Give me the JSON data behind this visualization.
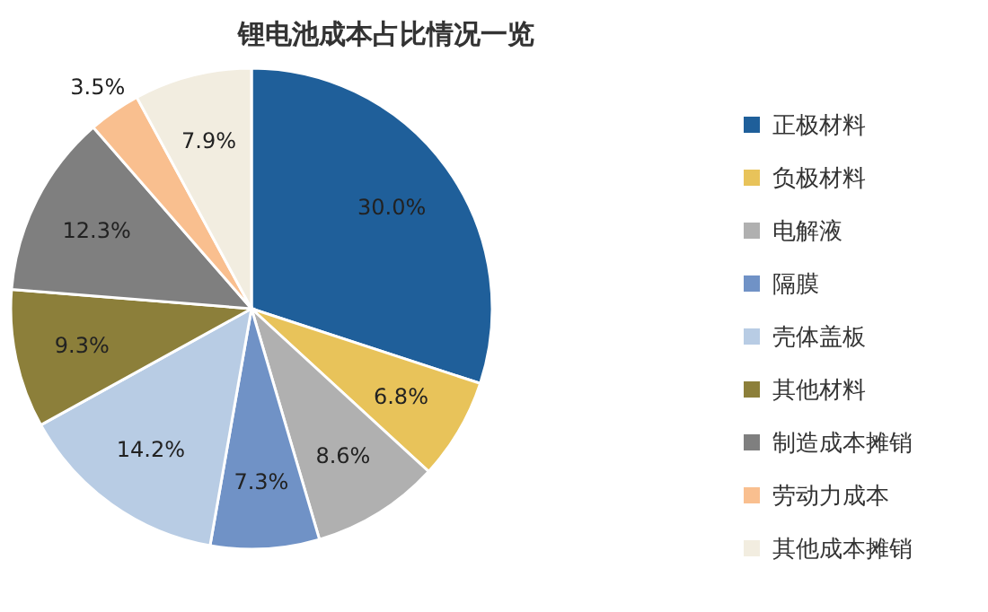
{
  "chart_data": {
    "type": "pie",
    "title": "锂电池成本占比情况一览",
    "categories": [
      "正极材料",
      "负极材料",
      "电解液",
      "隔膜",
      "壳体盖板",
      "其他材料",
      "制造成本摊销",
      "劳动力成本",
      "其他成本摊销"
    ],
    "values": [
      30.0,
      6.8,
      8.6,
      7.3,
      14.2,
      9.3,
      12.3,
      3.5,
      7.9
    ],
    "colors": [
      "#1f5f9a",
      "#e8c35a",
      "#b0b0b0",
      "#7092c6",
      "#b8cce4",
      "#8c7f3a",
      "#7f7f7f",
      "#f9bf8f",
      "#f2ede0"
    ],
    "value_labels": [
      "30.0%",
      "6.8%",
      "8.6%",
      "7.3%",
      "14.2%",
      "9.3%",
      "12.3%",
      "3.5%",
      "7.9%"
    ],
    "legend": "right"
  }
}
